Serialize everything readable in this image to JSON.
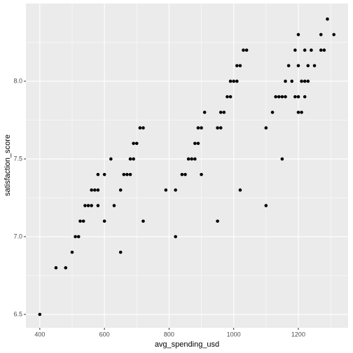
{
  "chart_data": {
    "type": "scatter",
    "x_label": "avg_spending_usd",
    "y_label": "satisfaction_score",
    "color": "#000000",
    "grid": true,
    "xlim": [
      357,
      1354
    ],
    "ylim": [
      6.414,
      8.5
    ],
    "xticks": [
      400,
      600,
      800,
      1000,
      1200
    ],
    "yticks": [
      {
        "value": 6.5,
        "label": "6.5"
      },
      {
        "value": 7,
        "label": "7.0"
      },
      {
        "value": 7.5,
        "label": "7.5"
      },
      {
        "value": 8,
        "label": "8.0"
      }
    ],
    "x": [
      400,
      450,
      480,
      500,
      510,
      520,
      525,
      535,
      540,
      550,
      560,
      560,
      570,
      580,
      580,
      580,
      600,
      600,
      620,
      630,
      650,
      650,
      660,
      670,
      680,
      680,
      690,
      690,
      700,
      710,
      720,
      720,
      790,
      820,
      820,
      840,
      850,
      860,
      870,
      880,
      880,
      890,
      890,
      900,
      900,
      910,
      950,
      950,
      960,
      960,
      970,
      980,
      990,
      990,
      1000,
      1010,
      1010,
      1020,
      1020,
      1030,
      1040,
      1100,
      1100,
      1120,
      1130,
      1140,
      1150,
      1150,
      1160,
      1160,
      1170,
      1180,
      1190,
      1190,
      1200,
      1200,
      1200,
      1200,
      1210,
      1210,
      1220,
      1220,
      1220,
      1230,
      1230,
      1240,
      1250,
      1270,
      1270,
      1280,
      1290,
      1310
    ],
    "values": [
      6.5,
      6.8,
      6.8,
      6.9,
      7.0,
      7.0,
      7.1,
      7.1,
      7.2,
      7.2,
      7.2,
      7.3,
      7.3,
      7.3,
      7.2,
      7.4,
      7.4,
      7.1,
      7.5,
      7.2,
      7.3,
      6.9,
      7.4,
      7.4,
      7.4,
      7.5,
      7.5,
      7.6,
      7.6,
      7.7,
      7.7,
      7.1,
      7.3,
      7.3,
      7.0,
      7.4,
      7.4,
      7.5,
      7.5,
      7.5,
      7.6,
      7.6,
      7.7,
      7.7,
      7.4,
      7.8,
      7.7,
      7.1,
      7.7,
      7.8,
      7.8,
      7.9,
      7.9,
      8.0,
      8.0,
      8.0,
      8.1,
      8.1,
      7.3,
      8.2,
      8.2,
      7.7,
      7.2,
      7.8,
      7.9,
      7.9,
      7.9,
      7.5,
      7.9,
      8.0,
      8.1,
      8.0,
      8.2,
      7.9,
      8.3,
      8.1,
      7.9,
      7.8,
      7.8,
      8.0,
      8.2,
      8.0,
      7.9,
      8.0,
      8.1,
      8.2,
      8.1,
      8.3,
      8.2,
      8.2,
      8.4,
      8.3
    ]
  }
}
